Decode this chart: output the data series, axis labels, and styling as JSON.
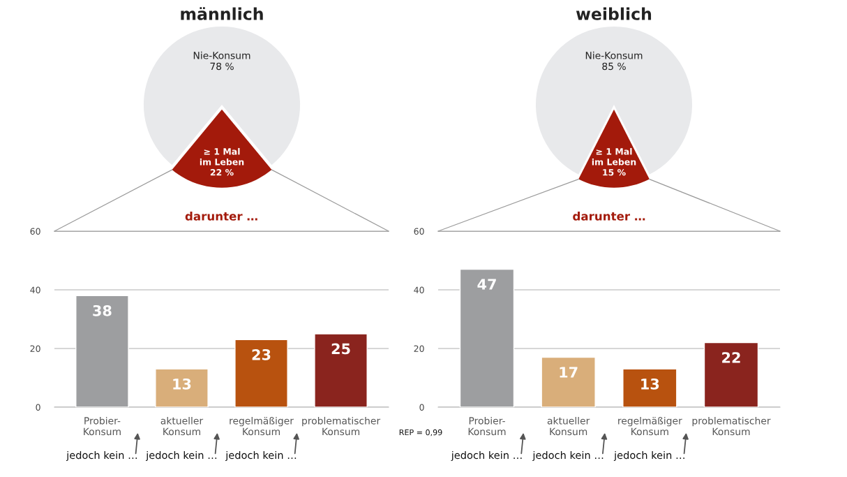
{
  "chart_data": [
    {
      "type": "pie",
      "title": "männlich",
      "categories": [
        "Nie-Konsum",
        "≥ 1 Mal\nim Leben"
      ],
      "values": [
        78,
        22
      ],
      "value_labels": [
        "78 %",
        "22 %"
      ],
      "colors": [
        "#e8e9eb",
        "#a31a0b"
      ]
    },
    {
      "type": "bar",
      "categories": [
        "Probier-\nKonsum",
        "aktueller\nKonsum",
        "regelmäßiger\nKonsum",
        "problematischer\nKonsum"
      ],
      "values": [
        38,
        13,
        23,
        25
      ],
      "colors": [
        "#9d9ea0",
        "#d9ae7a",
        "#b8520f",
        "#8a241e"
      ],
      "data_labels": true,
      "ylim": [
        0,
        60
      ],
      "yticks": [
        0,
        20,
        40,
        60
      ],
      "grid": "y",
      "annotations": [
        "darunter …",
        "jedoch kein …",
        "jedoch kein …",
        "jedoch kein …"
      ]
    },
    {
      "type": "pie",
      "title": "weiblich",
      "categories": [
        "Nie-Konsum",
        "≥ 1 Mal\nim Leben"
      ],
      "values": [
        85,
        15
      ],
      "value_labels": [
        "85 %",
        "15 %"
      ],
      "colors": [
        "#e8e9eb",
        "#a31a0b"
      ]
    },
    {
      "type": "bar",
      "categories": [
        "Probier-\nKonsum",
        "aktueller\nKonsum",
        "regelmäßiger\nKonsum",
        "problematischer\nKonsum"
      ],
      "values": [
        47,
        17,
        13,
        22
      ],
      "colors": [
        "#9d9ea0",
        "#d9ae7a",
        "#b8520f",
        "#8a241e"
      ],
      "data_labels": true,
      "ylim": [
        0,
        60
      ],
      "yticks": [
        0,
        20,
        40,
        60
      ],
      "grid": "y",
      "annotations": [
        "darunter …",
        "jedoch kein …",
        "jedoch kein …",
        "jedoch kein …",
        "REP = 0,99"
      ]
    }
  ]
}
